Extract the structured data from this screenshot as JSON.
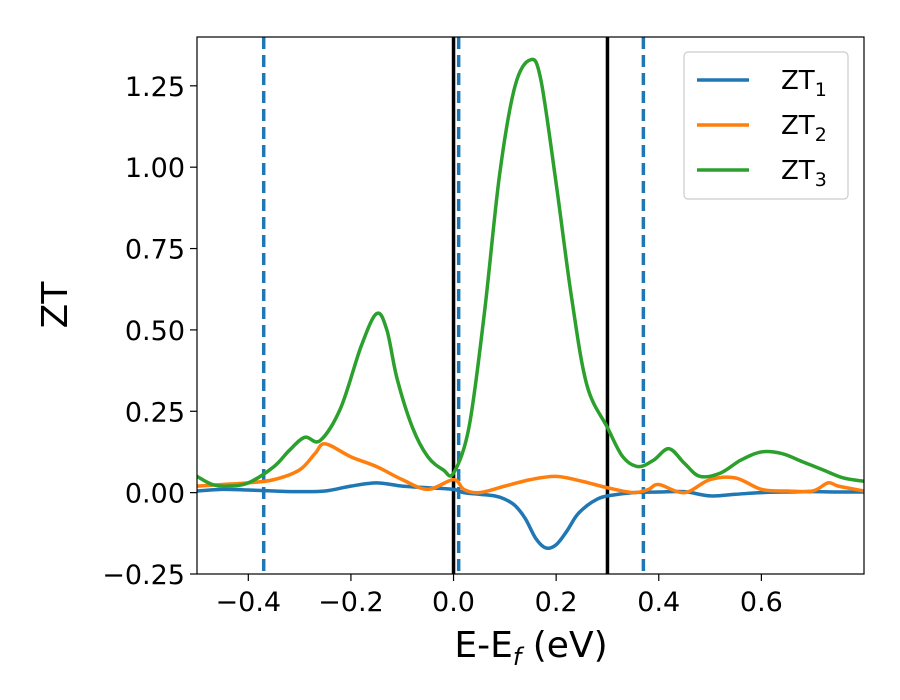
{
  "chart_data": {
    "type": "line",
    "xlabel": "E-E",
    "xlabel_sub": "f",
    "xlabel_unit": " (eV)",
    "ylabel": "ZT",
    "xlim": [
      -0.5,
      0.8
    ],
    "ylim": [
      -0.25,
      1.4
    ],
    "xticks": [
      -0.4,
      -0.2,
      0.0,
      0.2,
      0.4,
      0.6
    ],
    "xtick_labels": [
      "−0.4",
      "−0.2",
      "0.0",
      "0.2",
      "0.4",
      "0.6"
    ],
    "yticks": [
      -0.25,
      0.0,
      0.25,
      0.5,
      0.75,
      1.0,
      1.25
    ],
    "ytick_labels": [
      "−0.25",
      "0.00",
      "0.25",
      "0.50",
      "0.75",
      "1.00",
      "1.25"
    ],
    "legend_position": "top-right",
    "vlines": [
      {
        "x": -0.37,
        "style": "dashed",
        "color": "#1f77b4"
      },
      {
        "x": 0.0,
        "style": "solid",
        "color": "#000000"
      },
      {
        "x": 0.01,
        "style": "dashed",
        "color": "#1f77b4"
      },
      {
        "x": 0.3,
        "style": "solid",
        "color": "#000000"
      },
      {
        "x": 0.37,
        "style": "dashed",
        "color": "#1f77b4"
      }
    ],
    "series": [
      {
        "name": "ZT",
        "name_sub": "1",
        "color": "#1f77b4",
        "x": [
          -0.5,
          -0.45,
          -0.4,
          -0.35,
          -0.3,
          -0.25,
          -0.2,
          -0.15,
          -0.1,
          -0.05,
          0.0,
          0.02,
          0.05,
          0.08,
          0.1,
          0.12,
          0.14,
          0.16,
          0.18,
          0.2,
          0.22,
          0.24,
          0.26,
          0.28,
          0.3,
          0.35,
          0.4,
          0.45,
          0.5,
          0.55,
          0.6,
          0.65,
          0.7,
          0.75,
          0.8
        ],
        "y": [
          0.005,
          0.01,
          0.008,
          0.005,
          0.003,
          0.005,
          0.02,
          0.03,
          0.02,
          0.015,
          0.01,
          0.0,
          -0.005,
          -0.01,
          -0.02,
          -0.04,
          -0.08,
          -0.14,
          -0.17,
          -0.16,
          -0.12,
          -0.07,
          -0.04,
          -0.02,
          -0.01,
          0.0,
          0.002,
          0.003,
          -0.01,
          -0.005,
          0.0,
          0.002,
          0.003,
          0.002,
          0.002
        ]
      },
      {
        "name": "ZT",
        "name_sub": "2",
        "color": "#ff7f0e",
        "x": [
          -0.5,
          -0.45,
          -0.4,
          -0.35,
          -0.3,
          -0.27,
          -0.25,
          -0.2,
          -0.15,
          -0.1,
          -0.05,
          0.0,
          0.02,
          0.05,
          0.1,
          0.15,
          0.2,
          0.25,
          0.3,
          0.35,
          0.38,
          0.4,
          0.45,
          0.5,
          0.55,
          0.6,
          0.65,
          0.7,
          0.73,
          0.75,
          0.8
        ],
        "y": [
          0.02,
          0.025,
          0.03,
          0.04,
          0.07,
          0.12,
          0.15,
          0.11,
          0.08,
          0.04,
          0.01,
          0.04,
          0.01,
          0.0,
          0.02,
          0.04,
          0.05,
          0.035,
          0.015,
          0.0,
          0.01,
          0.025,
          0.0,
          0.04,
          0.045,
          0.01,
          0.005,
          0.005,
          0.03,
          0.02,
          0.005
        ]
      },
      {
        "name": "ZT",
        "name_sub": "3",
        "color": "#2ca02c",
        "x": [
          -0.5,
          -0.47,
          -0.44,
          -0.4,
          -0.35,
          -0.32,
          -0.29,
          -0.26,
          -0.22,
          -0.18,
          -0.15,
          -0.13,
          -0.11,
          -0.08,
          -0.05,
          -0.02,
          0.0,
          0.03,
          0.06,
          0.09,
          0.12,
          0.15,
          0.17,
          0.2,
          0.23,
          0.26,
          0.3,
          0.33,
          0.36,
          0.39,
          0.42,
          0.45,
          0.48,
          0.52,
          0.56,
          0.6,
          0.64,
          0.68,
          0.72,
          0.76,
          0.8
        ],
        "y": [
          0.05,
          0.025,
          0.02,
          0.03,
          0.08,
          0.13,
          0.17,
          0.16,
          0.26,
          0.45,
          0.55,
          0.5,
          0.35,
          0.2,
          0.11,
          0.07,
          0.06,
          0.2,
          0.55,
          0.98,
          1.25,
          1.33,
          1.27,
          0.95,
          0.6,
          0.33,
          0.2,
          0.11,
          0.08,
          0.1,
          0.135,
          0.09,
          0.05,
          0.06,
          0.1,
          0.125,
          0.12,
          0.095,
          0.07,
          0.045,
          0.035
        ]
      }
    ]
  }
}
